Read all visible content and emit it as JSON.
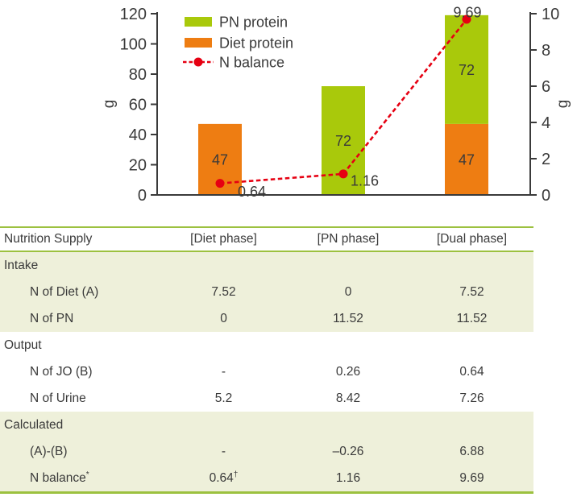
{
  "chart_data": {
    "type": "bar",
    "subtype": "stacked-bars-with-line",
    "categories": [
      "Diet phase",
      "PN phase",
      "Dual phase"
    ],
    "series": [
      {
        "name": "Diet protein",
        "color": "#ee7d12",
        "values": [
          47,
          0,
          47
        ]
      },
      {
        "name": "PN protein",
        "color": "#a9c90b",
        "values": [
          0,
          72,
          72
        ]
      }
    ],
    "line_series": {
      "name": "N balance",
      "color": "#e60012",
      "axis": "right",
      "values": [
        0.64,
        1.16,
        9.69
      ],
      "point_labels": [
        "0.64",
        "1.16",
        "9.69"
      ]
    },
    "left_axis": {
      "label": "g",
      "min": 0,
      "max": 120,
      "ticks": [
        0,
        20,
        40,
        60,
        80,
        100,
        120
      ]
    },
    "right_axis": {
      "label": "g",
      "min": 0,
      "max": 10,
      "ticks": [
        0,
        2,
        4,
        6,
        8,
        10
      ]
    },
    "legend": {
      "position": "top-left-inside",
      "items": [
        {
          "label": "PN protein",
          "marker": "swatch",
          "color": "#a9c90b"
        },
        {
          "label": "Diet protein",
          "marker": "swatch",
          "color": "#ee7d12"
        },
        {
          "label": "N balance",
          "marker": "dashed-line-dot",
          "color": "#e60012"
        }
      ]
    },
    "grid": false,
    "title": "",
    "xlabel": ""
  },
  "table": {
    "headers": [
      "Nutrition Supply",
      "[Diet phase]",
      "[PN phase]",
      "[Dual phase]"
    ],
    "rows": [
      {
        "type": "section",
        "label": "Intake",
        "shaded": true
      },
      {
        "type": "data",
        "label": "N of Diet (A)",
        "values": [
          "7.52",
          "0",
          "7.52"
        ],
        "value_sups": [
          "",
          "",
          ""
        ],
        "shaded": true
      },
      {
        "type": "data",
        "label": "N of PN",
        "values": [
          "0",
          "11.52",
          "11.52"
        ],
        "value_sups": [
          "",
          "",
          ""
        ],
        "shaded": true
      },
      {
        "type": "section",
        "label": "Output",
        "shaded": false
      },
      {
        "type": "data",
        "label": "N of JO (B)",
        "values": [
          "-",
          "0.26",
          "0.64"
        ],
        "value_sups": [
          "",
          "",
          ""
        ],
        "shaded": false
      },
      {
        "type": "data",
        "label": "N of Urine",
        "values": [
          "5.2",
          "8.42",
          "7.26"
        ],
        "value_sups": [
          "",
          "",
          ""
        ],
        "shaded": false
      },
      {
        "type": "section",
        "label": "Calculated",
        "shaded": true
      },
      {
        "type": "data",
        "label": "(A)-(B)",
        "values": [
          "-",
          "–0.26",
          "6.88"
        ],
        "value_sups": [
          "",
          "",
          ""
        ],
        "shaded": true
      },
      {
        "type": "data",
        "label": "N balance",
        "label_sup": "*",
        "values": [
          "0.64",
          "1.16",
          "9.69"
        ],
        "value_sups": [
          "†",
          "",
          ""
        ],
        "shaded": true
      }
    ],
    "colors": {
      "rule_green": "#9cc13f",
      "shade": "#eef0da",
      "text": "#3a3a3a"
    }
  }
}
